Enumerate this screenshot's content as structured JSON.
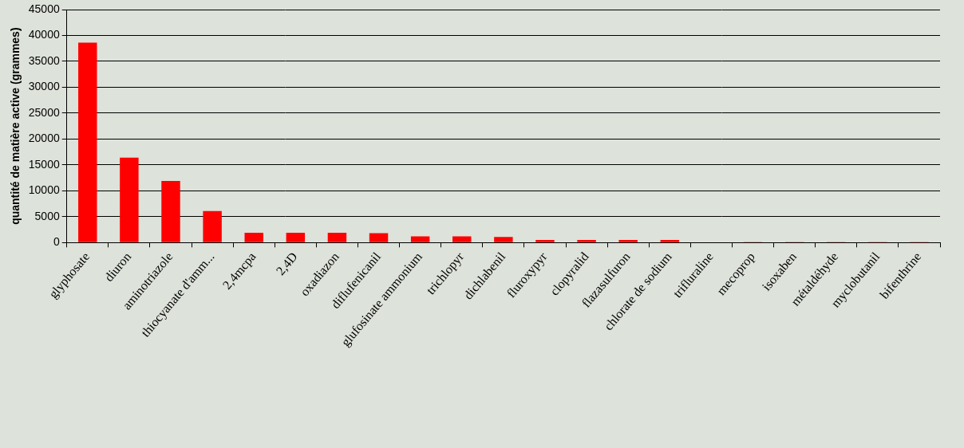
{
  "chart_data": {
    "type": "bar",
    "y_label": "quantité de matière active (grammes)",
    "categories": [
      "glyphosate",
      "diuron",
      "aminotriazole",
      "thiocyanate d'amm...",
      "2,4mcpa",
      "2,4D",
      "oxadiazon",
      "diflufenicanil",
      "glufosinate ammonium",
      "trichlopyr",
      "dichlabenil",
      "fluroxypyr",
      "clopyralid",
      "flazasulfuron",
      "chlorate de sodium",
      "trifluraline",
      "mecoprop",
      "isoxaben",
      "métaldéhyde",
      "myclobutanil",
      "bifenthrine"
    ],
    "values": [
      38600,
      16400,
      11900,
      6100,
      1900,
      1900,
      1900,
      1800,
      1200,
      1200,
      1100,
      500,
      500,
      500,
      500,
      100,
      50,
      50,
      30,
      20,
      10
    ],
    "color": "#ff0000",
    "ylim": [
      0,
      45000
    ],
    "yticks": [
      0,
      5000,
      10000,
      15000,
      20000,
      25000,
      30000,
      35000,
      40000,
      45000
    ],
    "grid": true
  }
}
